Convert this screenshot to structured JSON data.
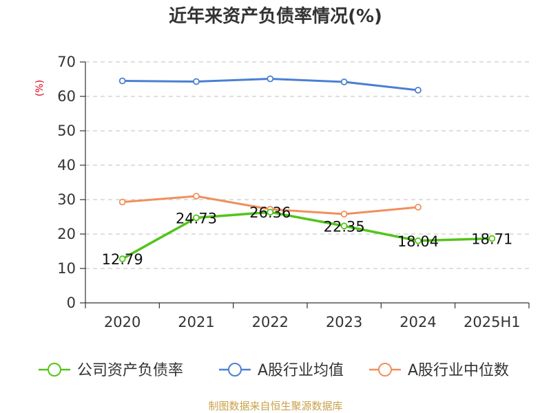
{
  "chart_data": {
    "type": "line",
    "title": "近年来资产负债率情况(%)",
    "ylabel": "(%)",
    "xlabel": "",
    "categories": [
      "2020",
      "2021",
      "2022",
      "2023",
      "2024",
      "2025H1"
    ],
    "ylim": [
      0,
      70
    ],
    "yticks": [
      0,
      10,
      20,
      30,
      40,
      50,
      60,
      70
    ],
    "grid": "horizontal dashed",
    "legend_position": "bottom",
    "series": [
      {
        "name": "公司资产负债率",
        "color": "#52c41a",
        "values": [
          12.79,
          24.73,
          26.36,
          22.35,
          18.04,
          18.71
        ],
        "labels": [
          "12.79",
          "24.73",
          "26.36",
          "22.35",
          "18.04",
          "18.71"
        ]
      },
      {
        "name": "A股行业均值",
        "color": "#4a7fd4",
        "values": [
          64.5,
          64.3,
          65.1,
          64.2,
          61.8,
          null
        ]
      },
      {
        "name": "A股行业中位数",
        "color": "#f28e5b",
        "values": [
          29.3,
          31.0,
          27.2,
          25.8,
          27.8,
          null
        ]
      }
    ]
  },
  "source": "制图数据来自恒生聚源数据库"
}
